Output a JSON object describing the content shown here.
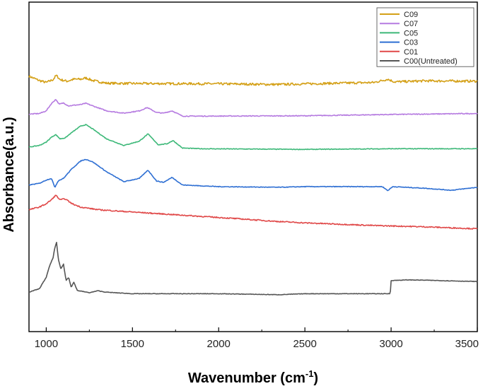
{
  "chart_data": {
    "type": "line",
    "title": "",
    "xlabel": "Wavenumber (cm",
    "xlabel_sup": "-1",
    "xlabel_close": ")",
    "ylabel": "Absorbance(a.u.)",
    "xlim": [
      900,
      3500
    ],
    "ylim": [
      0,
      100
    ],
    "xticks": [
      1000,
      1500,
      2000,
      2500,
      3000,
      3500
    ],
    "y_ticks_labeled": false,
    "grid": false,
    "legend_position": "top-right",
    "series": [
      {
        "name": "C09",
        "color": "#d4a017",
        "noise": 0.7,
        "points": [
          [
            900,
            77.5
          ],
          [
            960,
            76.2
          ],
          [
            1000,
            75.6
          ],
          [
            1040,
            76.5
          ],
          [
            1058,
            77.8
          ],
          [
            1080,
            76.5
          ],
          [
            1120,
            76.0
          ],
          [
            1160,
            76.6
          ],
          [
            1200,
            76.6
          ],
          [
            1230,
            77.0
          ],
          [
            1270,
            76.2
          ],
          [
            1350,
            75.4
          ],
          [
            1500,
            75.3
          ],
          [
            2000,
            75.2
          ],
          [
            2350,
            75.0
          ],
          [
            2500,
            75.2
          ],
          [
            2900,
            75.6
          ],
          [
            2980,
            76.6
          ],
          [
            3020,
            75.8
          ],
          [
            3200,
            76.1
          ],
          [
            3500,
            76.0
          ]
        ]
      },
      {
        "name": "C07",
        "color": "#b57ae0",
        "noise": 0.25,
        "points": [
          [
            900,
            66.0
          ],
          [
            960,
            66.2
          ],
          [
            1000,
            67.0
          ],
          [
            1030,
            69.2
          ],
          [
            1055,
            70.5
          ],
          [
            1075,
            69.0
          ],
          [
            1100,
            69.4
          ],
          [
            1130,
            68.5
          ],
          [
            1160,
            68.7
          ],
          [
            1200,
            68.9
          ],
          [
            1230,
            69.3
          ],
          [
            1270,
            68.5
          ],
          [
            1350,
            67.0
          ],
          [
            1450,
            66.3
          ],
          [
            1540,
            67.0
          ],
          [
            1585,
            68.0
          ],
          [
            1640,
            66.5
          ],
          [
            1680,
            66.3
          ],
          [
            1730,
            67.0
          ],
          [
            1790,
            65.4
          ],
          [
            1900,
            65.4
          ],
          [
            2500,
            65.5
          ],
          [
            3000,
            65.9
          ],
          [
            3500,
            66.2
          ]
        ]
      },
      {
        "name": "C05",
        "color": "#3cb878",
        "noise": 0.2,
        "points": [
          [
            900,
            56.0
          ],
          [
            960,
            56.5
          ],
          [
            1000,
            57.5
          ],
          [
            1030,
            59.0
          ],
          [
            1055,
            59.8
          ],
          [
            1080,
            58.5
          ],
          [
            1110,
            58.8
          ],
          [
            1150,
            60.5
          ],
          [
            1200,
            62.4
          ],
          [
            1230,
            62.8
          ],
          [
            1270,
            61.5
          ],
          [
            1350,
            58.5
          ],
          [
            1450,
            56.5
          ],
          [
            1540,
            57.8
          ],
          [
            1590,
            60.0
          ],
          [
            1650,
            56.7
          ],
          [
            1700,
            57.0
          ],
          [
            1735,
            58.0
          ],
          [
            1790,
            55.7
          ],
          [
            1900,
            55.5
          ],
          [
            2500,
            55.3
          ],
          [
            3000,
            55.5
          ],
          [
            3500,
            55.5
          ]
        ]
      },
      {
        "name": "C03",
        "color": "#2e6fd3",
        "noise": 0.2,
        "points": [
          [
            900,
            44.5
          ],
          [
            960,
            45.0
          ],
          [
            1000,
            46.0
          ],
          [
            1030,
            46.5
          ],
          [
            1050,
            43.8
          ],
          [
            1070,
            45.8
          ],
          [
            1100,
            46.5
          ],
          [
            1150,
            49.5
          ],
          [
            1200,
            51.8
          ],
          [
            1230,
            52.3
          ],
          [
            1270,
            51.5
          ],
          [
            1350,
            48.5
          ],
          [
            1450,
            45.5
          ],
          [
            1540,
            46.5
          ],
          [
            1590,
            49.0
          ],
          [
            1640,
            45.7
          ],
          [
            1680,
            45.3
          ],
          [
            1730,
            46.8
          ],
          [
            1790,
            44.5
          ],
          [
            2000,
            44.0
          ],
          [
            2350,
            43.8
          ],
          [
            2500,
            44.0
          ],
          [
            2950,
            44.0
          ],
          [
            2980,
            42.8
          ],
          [
            3010,
            44.0
          ],
          [
            3200,
            43.5
          ],
          [
            3350,
            42.9
          ],
          [
            3500,
            43.8
          ]
        ]
      },
      {
        "name": "C01",
        "color": "#e04848",
        "noise": 0.35,
        "points": [
          [
            900,
            37.0
          ],
          [
            960,
            37.8
          ],
          [
            1000,
            38.8
          ],
          [
            1030,
            40.0
          ],
          [
            1055,
            41.4
          ],
          [
            1080,
            40.0
          ],
          [
            1110,
            40.3
          ],
          [
            1150,
            38.8
          ],
          [
            1200,
            37.8
          ],
          [
            1300,
            37.0
          ],
          [
            1500,
            36.3
          ],
          [
            1800,
            35.3
          ],
          [
            2100,
            34.3
          ],
          [
            2350,
            33.4
          ],
          [
            2500,
            33.0
          ],
          [
            2900,
            32.2
          ],
          [
            3200,
            31.8
          ],
          [
            3500,
            31.2
          ]
        ]
      },
      {
        "name": "C00(Untreated)",
        "color": "#555555",
        "noise": 0.15,
        "points": [
          [
            900,
            12.0
          ],
          [
            960,
            13.0
          ],
          [
            1000,
            16.5
          ],
          [
            1020,
            20.0
          ],
          [
            1040,
            22.5
          ],
          [
            1050,
            25.5
          ],
          [
            1060,
            27.0
          ],
          [
            1070,
            22.0
          ],
          [
            1085,
            19.0
          ],
          [
            1100,
            20.5
          ],
          [
            1115,
            15.5
          ],
          [
            1130,
            16.5
          ],
          [
            1145,
            13.5
          ],
          [
            1160,
            15.0
          ],
          [
            1180,
            12.5
          ],
          [
            1250,
            11.8
          ],
          [
            1300,
            12.4
          ],
          [
            1340,
            12.0
          ],
          [
            1400,
            11.8
          ],
          [
            1500,
            11.5
          ],
          [
            2000,
            11.5
          ],
          [
            2350,
            11.2
          ],
          [
            2500,
            11.5
          ],
          [
            2995,
            11.5
          ],
          [
            3000,
            15.5
          ],
          [
            3100,
            15.7
          ],
          [
            3200,
            15.6
          ],
          [
            3500,
            15.2
          ]
        ]
      }
    ]
  }
}
